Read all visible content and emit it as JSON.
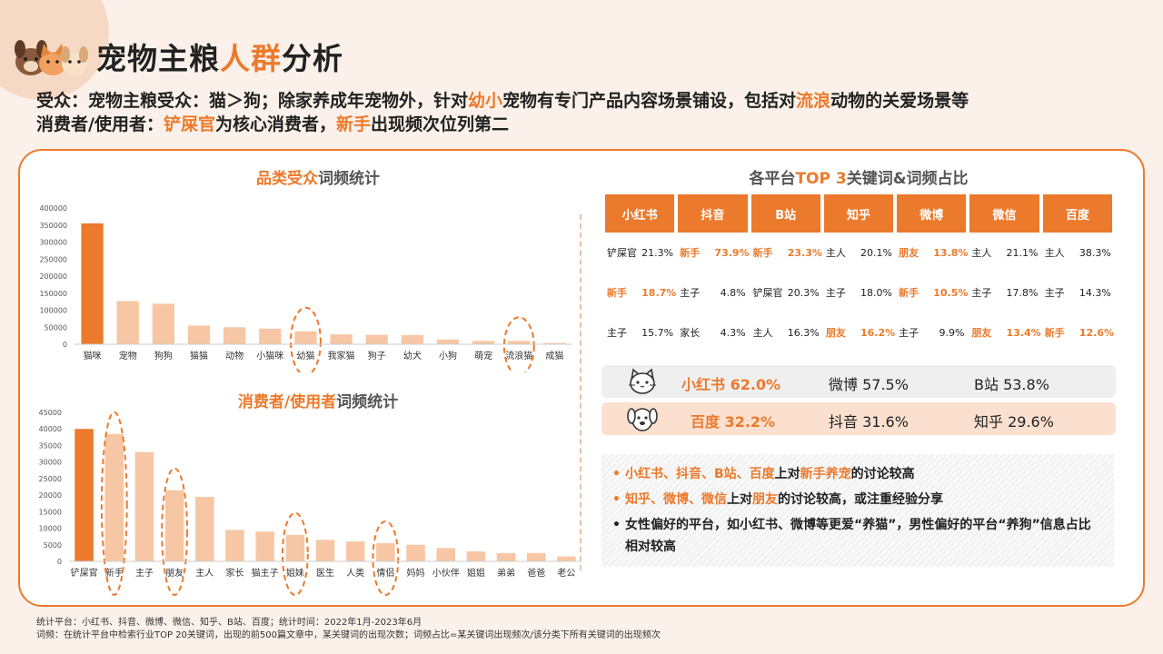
{
  "header": {
    "title_a": "宠物主粮",
    "title_hl": "人群",
    "title_b": "分析"
  },
  "subtitle1": {
    "a": "受众：宠物主粮受众：猫＞狗；除家养成年宠物外，针对",
    "hl1": "幼小",
    "b": "宠物有专门产品内容场景铺设，包括对",
    "hl2": "流浪",
    "c": "动物的关爱场景等"
  },
  "subtitle2": {
    "a": "消费者/使用者：",
    "hl1": "铲屎官",
    "b": "为核心消费者，",
    "hl2": "新手",
    "c": "出现频次位列第二"
  },
  "colors": {
    "accent": "#ec7a2c",
    "light": "#f7c7a5"
  },
  "chart_data": [
    {
      "type": "bar",
      "title_hl": "品类受众",
      "title_rest": "词频统计",
      "categories": [
        "猫咪",
        "宠物",
        "狗狗",
        "猫猫",
        "动物",
        "小猫咪",
        "幼猫",
        "我家猫",
        "狗子",
        "幼犬",
        "小狗",
        "萌宠",
        "流浪猫",
        "成猫"
      ],
      "values": [
        355000,
        127000,
        119000,
        55000,
        50000,
        46000,
        38000,
        29000,
        28000,
        27000,
        14000,
        10000,
        10000,
        4000
      ],
      "ylim": [
        0,
        400000
      ],
      "yticks": [
        0,
        50000,
        100000,
        150000,
        200000,
        250000,
        300000,
        350000,
        400000
      ],
      "highlight_index": 0,
      "circled": [
        "幼猫",
        "流浪猫"
      ]
    },
    {
      "type": "bar",
      "title_hl": "消费者/使用者",
      "title_rest": "词频统计",
      "categories": [
        "铲屎官",
        "新手",
        "主子",
        "朋友",
        "主人",
        "家长",
        "猫主子",
        "姐妹",
        "医生",
        "人类",
        "情侣",
        "妈妈",
        "小伙伴",
        "姐姐",
        "弟弟",
        "爸爸",
        "老公"
      ],
      "values": [
        40000,
        38500,
        33000,
        21500,
        19500,
        9500,
        9000,
        8000,
        6500,
        6000,
        5500,
        5000,
        4000,
        3000,
        2500,
        2500,
        1500
      ],
      "ylim": [
        0,
        45000
      ],
      "yticks": [
        0,
        5000,
        10000,
        15000,
        20000,
        25000,
        30000,
        35000,
        40000,
        45000
      ],
      "highlight_index": 0,
      "circled": [
        "新手",
        "朋友",
        "姐妹",
        "情侣"
      ]
    }
  ],
  "keywords": {
    "title_a": "各平台",
    "title_hl": "TOP 3",
    "title_b": "关键词&词频占比",
    "platforms": [
      "小红书",
      "抖音",
      "B站",
      "知乎",
      "微博",
      "微信",
      "百度"
    ],
    "rows": [
      [
        {
          "w": "铲屎官",
          "p": "21.3%"
        },
        {
          "w": "新手",
          "p": "73.9%",
          "hot": true
        },
        {
          "w": "新手",
          "p": "23.3%",
          "hot": true
        },
        {
          "w": "主人",
          "p": "20.1%"
        },
        {
          "w": "朋友",
          "p": "13.8%",
          "hot": true
        },
        {
          "w": "主人",
          "p": "21.1%"
        },
        {
          "w": "主人",
          "p": "38.3%"
        }
      ],
      [
        {
          "w": "新手",
          "p": "18.7%",
          "hot": true
        },
        {
          "w": "主子",
          "p": "4.8%"
        },
        {
          "w": "铲屎官",
          "p": "20.3%"
        },
        {
          "w": "主子",
          "p": "18.0%"
        },
        {
          "w": "新手",
          "p": "10.5%",
          "hot": true
        },
        {
          "w": "主子",
          "p": "17.8%"
        },
        {
          "w": "主子",
          "p": "14.3%"
        }
      ],
      [
        {
          "w": "主子",
          "p": "15.7%"
        },
        {
          "w": "家长",
          "p": "4.3%"
        },
        {
          "w": "主人",
          "p": "16.3%"
        },
        {
          "w": "朋友",
          "p": "16.2%",
          "hot": true
        },
        {
          "w": "主子",
          "p": "9.9%"
        },
        {
          "w": "朋友",
          "p": "13.4%",
          "hot": true
        },
        {
          "w": "新手",
          "p": "12.6%",
          "hot": true
        }
      ]
    ]
  },
  "summary": {
    "cat": {
      "a": "小红书 62.0%",
      "b": "微博 57.5%",
      "c": "B站 53.8%"
    },
    "dog": {
      "a": "百度 32.2%",
      "b": "抖音 31.6%",
      "c": "知乎 29.6%"
    }
  },
  "notes": {
    "n1": {
      "a": "小红书、抖音、B站、百度",
      "b": "上对",
      "c": "新手养宠",
      "d": "的讨论较高"
    },
    "n2": {
      "a": "知乎、微博、微信",
      "b": "上对",
      "c": "朋友",
      "d": "的讨论较高，或注重经验分享"
    },
    "n3": "女性偏好的平台，如小红书、微博等更爱“养猫”，男性偏好的平台“养狗”信息占比相对较高"
  },
  "footer": {
    "line1": "统计平台：小红书、抖音、微博、微信、知乎、B站、百度；统计时间：2022年1月-2023年6月",
    "line2": "词频：在统计平台中检索行业TOP 20关键词，出现的前500篇文章中，某关键词的出现次数；词频占比=某关键词出现频次/该分类下所有关键词的出现频次"
  }
}
